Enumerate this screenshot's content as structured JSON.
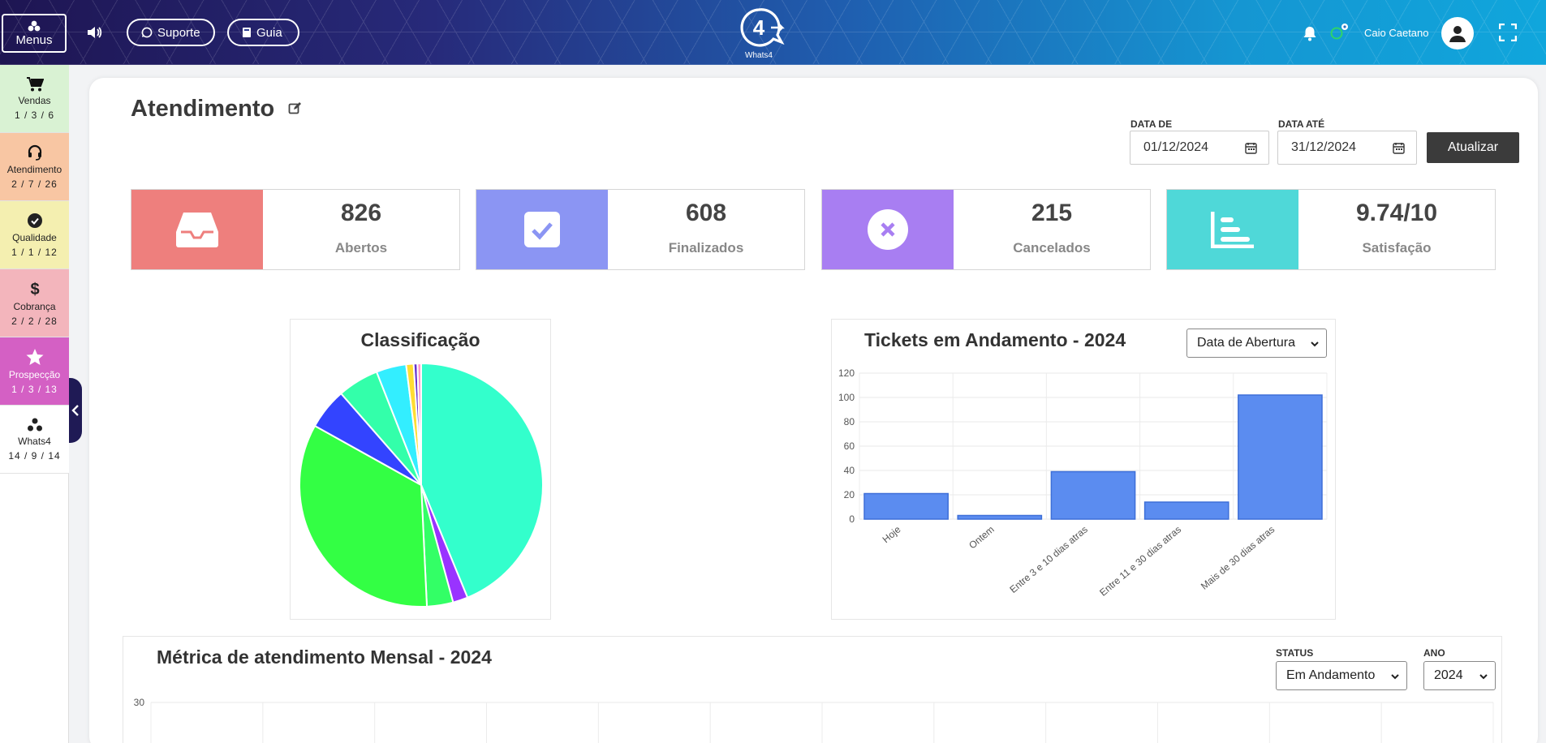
{
  "header": {
    "menus_label": "Menus",
    "suporte_label": "Suporte",
    "guia_label": "Guia",
    "logo_text": "Whats4",
    "user_name": "Caio Caetano"
  },
  "sidebar": {
    "items": [
      {
        "label": "Vendas",
        "counts": "1 / 3 / 6",
        "bg": "#d9f2d3",
        "icon": "cart-icon"
      },
      {
        "label": "Atendimento",
        "counts": "2 / 7 / 26",
        "bg": "#f8c6a3",
        "icon": "headset-icon"
      },
      {
        "label": "Qualidade",
        "counts": "1 / 1 / 12",
        "bg": "#f4efb0",
        "icon": "check-circle-icon"
      },
      {
        "label": "Cobrança",
        "counts": "2 / 2 / 28",
        "bg": "#f3b5bc",
        "icon": "dollar-icon"
      },
      {
        "label": "Prospecção",
        "counts": "1 / 3 / 13",
        "bg": "#d460c4",
        "icon": "star-icon"
      },
      {
        "label": "Whats4",
        "counts": "14 / 9 / 14",
        "bg": "#ffffff",
        "icon": "whats4-icon"
      }
    ]
  },
  "page": {
    "title": "Atendimento",
    "date_from_label": "DATA DE",
    "date_from_value": "01/12/2024",
    "date_to_label": "DATA ATÉ",
    "date_to_value": "31/12/2024",
    "update_label": "Atualizar"
  },
  "stats": [
    {
      "value": "826",
      "label": "Abertos",
      "color": "#ee7f7d",
      "icon": "inbox-icon"
    },
    {
      "value": "608",
      "label": "Finalizados",
      "color": "#8b95f3",
      "icon": "check-square-icon"
    },
    {
      "value": "215",
      "label": "Cancelados",
      "color": "#a87ef2",
      "icon": "x-circle-icon"
    },
    {
      "value": "9.74/10",
      "label": "Satisfação",
      "color": "#4fd8d8",
      "icon": "bar-chart-icon"
    }
  ],
  "chart_data": [
    {
      "type": "pie",
      "title": "Classificação",
      "slices": [
        {
          "value": 44,
          "color": "#33ffcc"
        },
        {
          "value": 2,
          "color": "#9933ff"
        },
        {
          "value": 3.5,
          "color": "#33ff66"
        },
        {
          "value": 34,
          "color": "#33ff44"
        },
        {
          "value": 5.5,
          "color": "#3344ff"
        },
        {
          "value": 5.5,
          "color": "#33ffaa"
        },
        {
          "value": 4,
          "color": "#33eeff"
        },
        {
          "value": 1,
          "color": "#ffdd33"
        },
        {
          "value": 0.5,
          "color": "#6633cc"
        },
        {
          "value": 0.5,
          "color": "#ff99cc"
        }
      ]
    },
    {
      "type": "bar",
      "title": "Tickets em Andamento - 2024",
      "select_value": "Data de Abertura",
      "categories": [
        "Hoje",
        "Ontem",
        "Entre 3 e 10 dias atras",
        "Entre 11 e 30 dias atras",
        "Mais de 30 dias atras"
      ],
      "values": [
        21,
        3,
        39,
        14,
        102
      ],
      "ylim": [
        0,
        120
      ],
      "yticks": [
        "120",
        "100",
        "80",
        "60",
        "40",
        "20",
        "0"
      ],
      "color": "#5b8cf0"
    },
    {
      "type": "line",
      "title": "Métrica de atendimento Mensal - 2024",
      "status_label": "STATUS",
      "status_value": "Em Andamento",
      "year_label": "ANO",
      "year_value": "2024",
      "yticks": [
        "30"
      ]
    }
  ]
}
